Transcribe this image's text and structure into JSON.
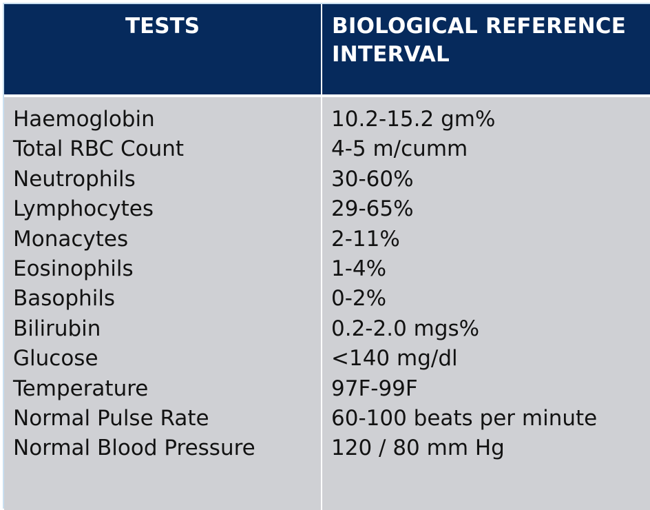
{
  "table": {
    "headers": {
      "tests": "TESTS",
      "reference_line1": "BIOLOGICAL REFERENCE",
      "reference_line2": "INTERVAL"
    },
    "rows": [
      {
        "test": "Haemoglobin",
        "range": "10.2-15.2 gm%"
      },
      {
        "test": "Total RBC Count",
        "range": "4-5 m/cumm"
      },
      {
        "test": "Neutrophils",
        "range": "30-60%"
      },
      {
        "test": "Lymphocytes",
        "range": "29-65%"
      },
      {
        "test": "Monacytes",
        "range": "2-11%"
      },
      {
        "test": "Eosinophils",
        "range": "1-4%"
      },
      {
        "test": "Basophils",
        "range": "0-2%"
      },
      {
        "test": "Bilirubin",
        "range": "0.2-2.0 mgs%"
      },
      {
        "test": "Glucose",
        "range": "<140 mg/dl"
      },
      {
        "test": "Temperature",
        "range": "97F-99F"
      },
      {
        "test": "Normal Pulse Rate",
        "range": "60-100 beats per minute"
      },
      {
        "test": "Normal Blood Pressure",
        "range": "120 / 80 mm Hg"
      }
    ]
  },
  "colors": {
    "header_bg": "#062a5c",
    "body_bg": "#cfd0d4",
    "divider": "#ffffff",
    "text": "#121212"
  }
}
